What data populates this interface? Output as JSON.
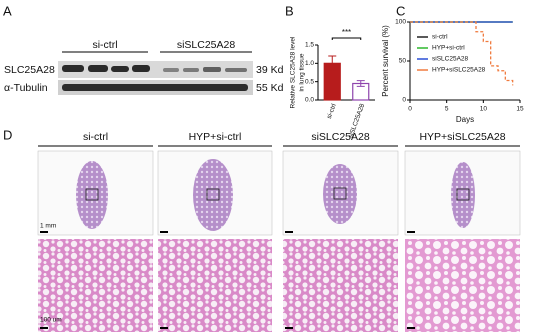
{
  "panel_labels": [
    "A",
    "B",
    "C",
    "D"
  ],
  "blot": {
    "groups": [
      "si-ctrl",
      "siSLC25A28"
    ],
    "rows": [
      {
        "protein": "SLC25A28",
        "size": "39 Kd"
      },
      {
        "protein": "α-Tubulin",
        "size": "55 Kd"
      }
    ]
  },
  "chart_data": [
    {
      "type": "bar",
      "ylabel": [
        "Relative SLC25A28 level",
        "in lung tissue"
      ],
      "categories": [
        "si-ctrl",
        "siSLC25A28"
      ],
      "values": [
        1.0,
        0.45
      ],
      "errors": [
        0.2,
        0.08
      ],
      "colors": [
        "#b71c1c",
        "#8e44ad"
      ],
      "hollow": [
        false,
        true
      ],
      "ylim": [
        0,
        1.5
      ],
      "yticks": [
        {
          "value": 0,
          "label": "0.0"
        },
        {
          "value": 0.5,
          "label": "0.5"
        },
        {
          "value": 1,
          "label": "1.0"
        },
        {
          "value": 1.5,
          "label": "1.5"
        }
      ],
      "annotation": "***"
    },
    {
      "type": "line",
      "xlabel": "Days",
      "ylabel": "Percent survival (%)",
      "x": [
        0,
        9,
        10,
        11,
        12,
        13,
        14
      ],
      "series": [
        {
          "name": "si-ctrl",
          "color": "#222222",
          "values": [
            100,
            100,
            100,
            100,
            100,
            100,
            100
          ]
        },
        {
          "name": "HYP+si-ctrl",
          "color": "#2eb82e",
          "values": [
            100,
            100,
            100,
            100,
            100,
            100,
            100
          ]
        },
        {
          "name": "siSLC25A28",
          "color": "#2a4fd6",
          "values": [
            100,
            100,
            100,
            100,
            100,
            100,
            100
          ]
        },
        {
          "name": "HYP+siSLC25A28",
          "color": "#f07b3f",
          "values": [
            100,
            87.5,
            75,
            43.75,
            37.5,
            25,
            18.75
          ]
        }
      ],
      "xlim": [
        0,
        15
      ],
      "xticks": [
        0,
        5,
        10,
        15
      ],
      "ylim": [
        0,
        100
      ],
      "yticks": [
        0,
        50,
        100
      ]
    }
  ],
  "histology": {
    "columns": [
      "si-ctrl",
      "HYP+si-ctrl",
      "siSLC25A28",
      "HYP+siSLC25A28"
    ],
    "scale_bars": [
      "1 mm",
      "100 um"
    ]
  }
}
